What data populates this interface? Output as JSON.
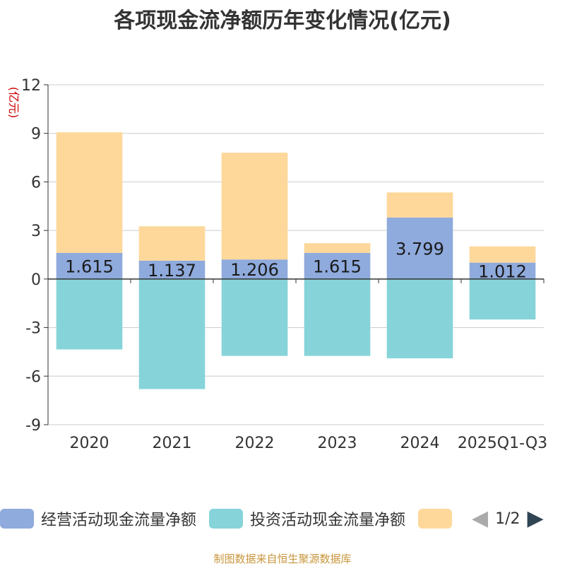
{
  "chart_data": {
    "type": "bar",
    "stacked": true,
    "title": "各项现金流净额历年变化情况(亿元)",
    "ylabel": "(亿元)",
    "xlabel": "",
    "ylim": [
      -9,
      12
    ],
    "yticks": [
      -9,
      -6,
      -3,
      0,
      3,
      6,
      9,
      12
    ],
    "ytick_labels": [
      "-9",
      "-6",
      "-3",
      "0",
      "3",
      "6",
      "9",
      "12"
    ],
    "grid": true,
    "categories": [
      "2020",
      "2021",
      "2022",
      "2023",
      "2024",
      "2025Q1-Q3"
    ],
    "series": [
      {
        "name": "经营活动现金流量净额",
        "color": "#8faadc",
        "values": [
          1.615,
          1.137,
          1.206,
          1.615,
          3.799,
          1.012
        ],
        "labels": [
          "1.615",
          "1.137",
          "1.206",
          "1.615",
          "3.799",
          "1.012"
        ]
      },
      {
        "name": "投资活动现金流量净额",
        "color": "#86d4d9",
        "values": [
          -4.35,
          -6.8,
          -4.75,
          -4.75,
          -4.9,
          -2.5
        ]
      },
      {
        "name": "",
        "color": "#fdd89a",
        "values": [
          7.45,
          2.12,
          6.6,
          0.6,
          1.55,
          1.0
        ]
      }
    ]
  },
  "legend": {
    "items": [
      {
        "label": "经营活动现金流量净额",
        "color": "#8faadc"
      },
      {
        "label": "投资活动现金流量净额",
        "color": "#86d4d9"
      },
      {
        "label": "",
        "color": "#fdd89a"
      }
    ],
    "page_indicator": "1/2",
    "prev_color": "#aaaaaa",
    "next_color": "#2f4554"
  },
  "footer": {
    "source": "制图数据来自恒生聚源数据库"
  }
}
